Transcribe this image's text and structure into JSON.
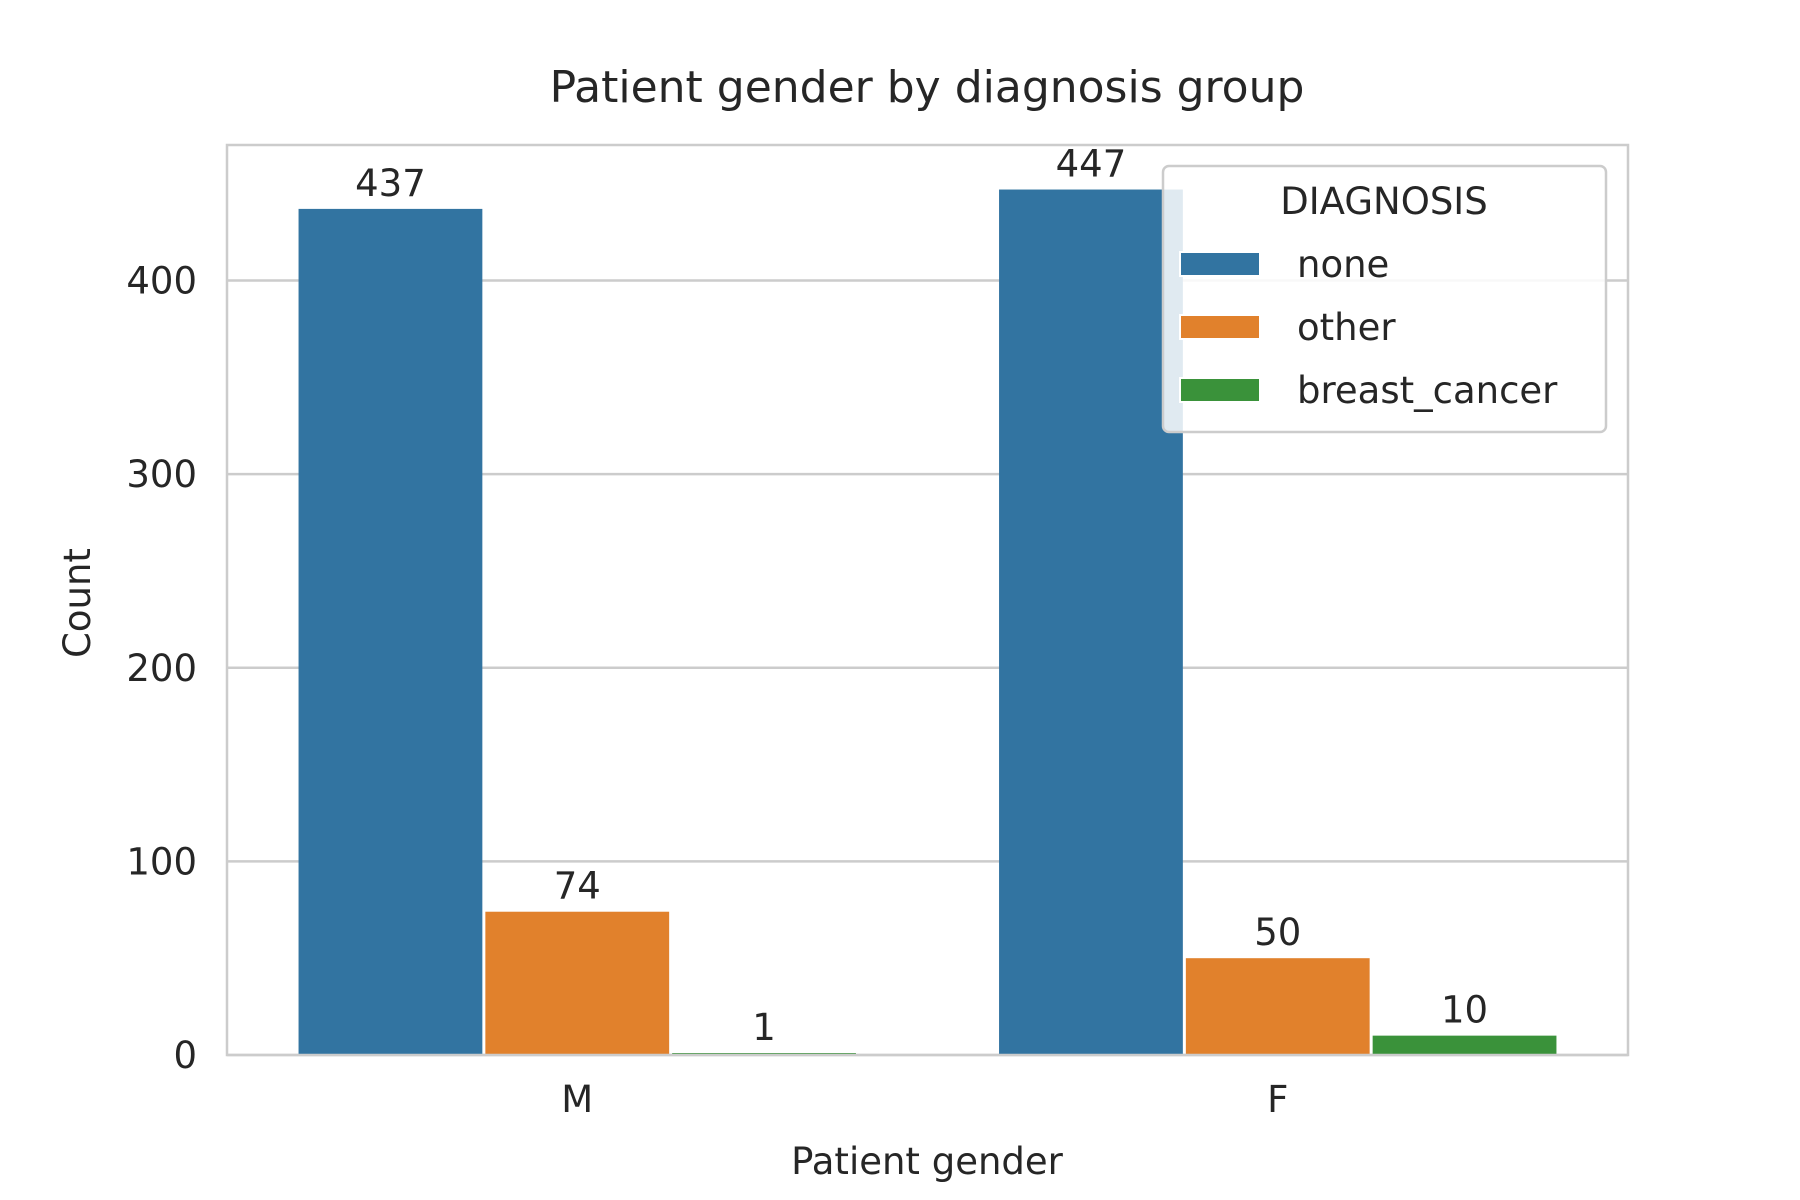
{
  "chart_data": {
    "type": "bar",
    "title": "Patient gender by diagnosis group",
    "xlabel": "Patient gender",
    "ylabel": "Count",
    "categories": [
      "M",
      "F"
    ],
    "series": [
      {
        "name": "none",
        "values": [
          437,
          447
        ],
        "color": "#3274a1"
      },
      {
        "name": "other",
        "values": [
          74,
          50
        ],
        "color": "#e1812c"
      },
      {
        "name": "breast_cancer",
        "values": [
          1,
          10
        ],
        "color": "#3a923a"
      }
    ],
    "ylim": [
      0,
      470
    ],
    "yticks": [
      0,
      100,
      200,
      300,
      400
    ],
    "grid": true,
    "legend": {
      "title": "DIAGNOSIS",
      "placement": "top-right"
    },
    "data_labels": true
  }
}
